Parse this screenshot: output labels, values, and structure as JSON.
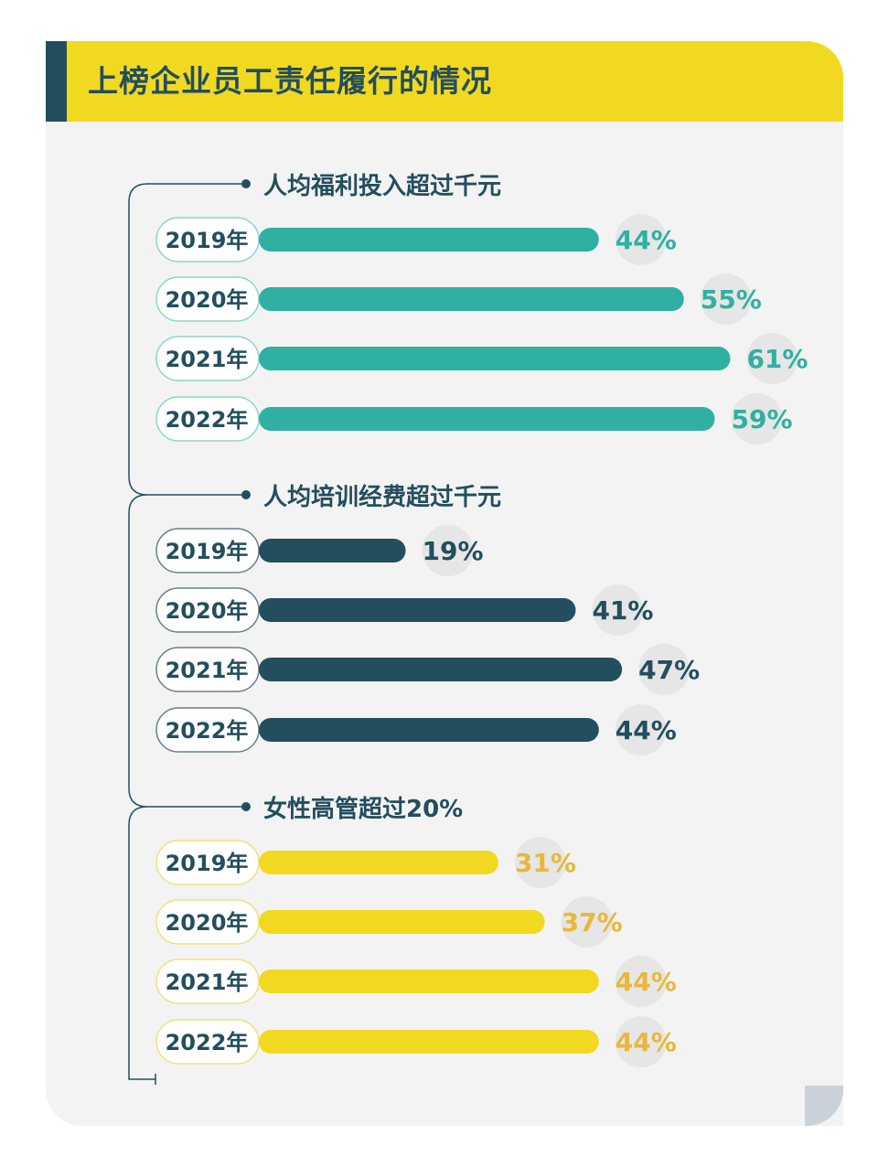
{
  "title": "上榜企业员工责任履行的情况",
  "colors": {
    "dark": "#234e5e",
    "teal": "#2fb0a2",
    "yellow": "#f2d921",
    "gold": "#e8b73c",
    "tealOutline": "#8ed4cc",
    "darkOutline": "#6b7f88",
    "yellowOutline": "#ece27a",
    "bubble": "#e6e6e6"
  },
  "chart_data": [
    {
      "type": "bar",
      "title": "人均福利投入超过千元",
      "categories": [
        "2019年",
        "2020年",
        "2021年",
        "2022年"
      ],
      "values": [
        44,
        55,
        61,
        59
      ],
      "labels": [
        "44%",
        "55%",
        "61%",
        "59%"
      ],
      "unit": "%",
      "color": "#2fb0a2",
      "labelColor": "#2fb0a2",
      "outline": "#8ed4cc"
    },
    {
      "type": "bar",
      "title": "人均培训经费超过千元",
      "categories": [
        "2019年",
        "2020年",
        "2021年",
        "2022年"
      ],
      "values": [
        19,
        41,
        47,
        44
      ],
      "labels": [
        "19%",
        "41%",
        "47%",
        "44%"
      ],
      "unit": "%",
      "color": "#234e5e",
      "labelColor": "#234e5e",
      "outline": "#6b7f88"
    },
    {
      "type": "bar",
      "title": "女性高管超过20%",
      "categories": [
        "2019年",
        "2020年",
        "2021年",
        "2022年"
      ],
      "values": [
        31,
        37,
        44,
        44
      ],
      "labels": [
        "31%",
        "37%",
        "44%",
        "44%"
      ],
      "unit": "%",
      "color": "#f2d921",
      "labelColor": "#e8b73c",
      "outline": "#ece27a"
    }
  ]
}
